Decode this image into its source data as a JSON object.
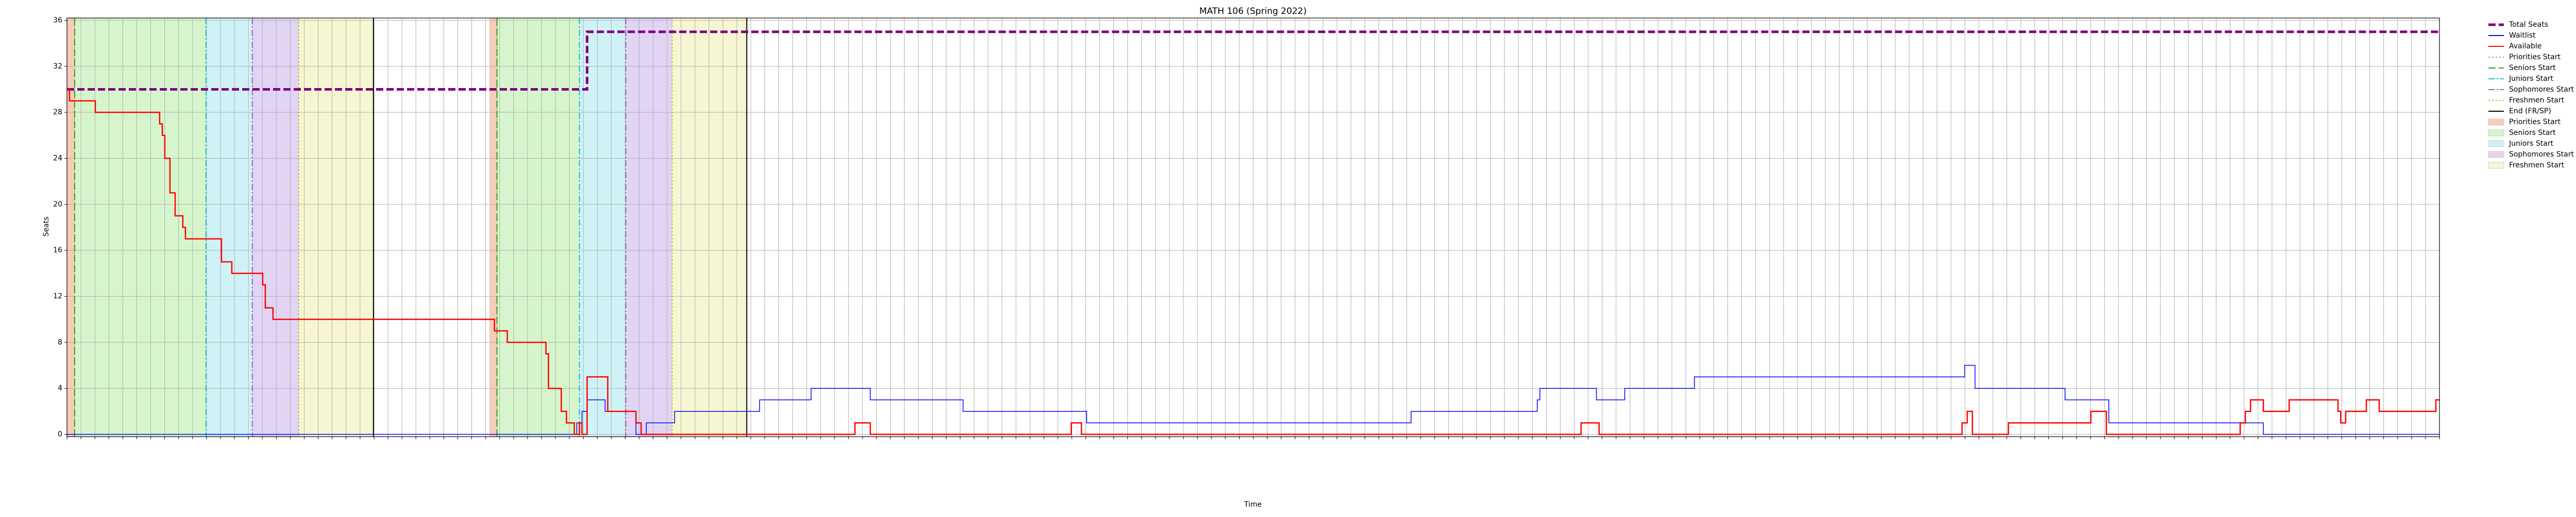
{
  "chart_data": {
    "type": "step",
    "title": "MATH 106 (Spring 2022)",
    "x_label": "Time",
    "y_label": "Seats",
    "xlim": [
      0,
      170
    ],
    "xticks": [
      0,
      1,
      2,
      3,
      4,
      5,
      6,
      7,
      8,
      9,
      10,
      11,
      12,
      13,
      14,
      15,
      16,
      17,
      18,
      19,
      20,
      21,
      22,
      23,
      24,
      25,
      26,
      27,
      28,
      29,
      30,
      31,
      32,
      33,
      34,
      35,
      36,
      37,
      38,
      39,
      40,
      41,
      42,
      43,
      44,
      45,
      46,
      47,
      48,
      49,
      50,
      51,
      52,
      53,
      54,
      55,
      56,
      57,
      58,
      59,
      60,
      61,
      62,
      63,
      64,
      65,
      66,
      67,
      68,
      69,
      70,
      71,
      72,
      73,
      74,
      75,
      76,
      77,
      78,
      79,
      80,
      81,
      82,
      83,
      84,
      85,
      86,
      87,
      88,
      89,
      90,
      91,
      92,
      93,
      94,
      95,
      96,
      97,
      98,
      99,
      100,
      101,
      102,
      103,
      104,
      105,
      106,
      107,
      108,
      109,
      110,
      111,
      112,
      113,
      114,
      115,
      116,
      117,
      118,
      119,
      120,
      121,
      122,
      123,
      124,
      125,
      126,
      127,
      128,
      129,
      130,
      131,
      132,
      133,
      134,
      135,
      136,
      137,
      138,
      139,
      140,
      141,
      142,
      143,
      144,
      145,
      146,
      147,
      148,
      149,
      150,
      151,
      152,
      153,
      154,
      155,
      156,
      157,
      158,
      159,
      160,
      161,
      162,
      163,
      164,
      165,
      166,
      167,
      168,
      169,
      170
    ],
    "ylim": [
      -0.2,
      36.2
    ],
    "yticks": [
      0,
      4,
      8,
      12,
      16,
      20,
      24,
      28,
      32,
      36
    ],
    "grid": true,
    "legend": "outside-right",
    "series": [
      {
        "name": "Total Seats",
        "color": "#800080",
        "style": "dashed",
        "x": [
          0,
          37.27,
          170
        ],
        "values": [
          30,
          35,
          35
        ]
      },
      {
        "name": "Waitlist",
        "color": "#0000ff",
        "style": "solid",
        "x": [
          0,
          36.53,
          36.9,
          37.27,
          38.56,
          40.77,
          41.51,
          43.54,
          49.63,
          53.32,
          57.56,
          64.21,
          73.06,
          96.31,
          105.35,
          105.54,
          109.59,
          111.62,
          116.61,
          135.98,
          136.72,
          143.17,
          146.31,
          157.38,
          170
        ],
        "values": [
          0,
          1,
          2,
          3,
          2,
          0,
          1,
          2,
          3,
          4,
          3,
          2,
          1,
          2,
          3,
          4,
          3,
          4,
          5,
          6,
          4,
          3,
          1,
          0,
          0
        ]
      },
      {
        "name": "Available",
        "color": "#ff0000",
        "style": "solid",
        "x": [
          0,
          0.18,
          2.03,
          6.64,
          6.83,
          7.01,
          7.38,
          7.75,
          8.3,
          8.49,
          11.07,
          11.81,
          14.02,
          14.21,
          14.76,
          30.63,
          31.55,
          34.32,
          34.5,
          35.42,
          35.79,
          36.35,
          36.72,
          36.9,
          37.27,
          38.75,
          40.77,
          41.14,
          56.46,
          57.56,
          71.96,
          72.69,
          108.49,
          109.78,
          135.79,
          136.16,
          136.53,
          139.11,
          145.02,
          146.13,
          155.72,
          156.09,
          156.46,
          157.38,
          159.23,
          162.73,
          162.92,
          163.28,
          164.76,
          165.68,
          169.74,
          170
        ],
        "values": [
          30,
          29,
          28,
          27,
          26,
          24,
          21,
          19,
          18,
          17,
          15,
          14,
          13,
          11,
          10,
          9,
          8,
          7,
          4,
          2,
          1,
          0,
          1,
          0,
          5,
          2,
          1,
          0,
          1,
          0,
          1,
          0,
          1,
          0,
          1,
          2,
          0,
          1,
          2,
          0,
          1,
          2,
          3,
          2,
          3,
          2,
          1,
          2,
          3,
          2,
          3,
          3
        ]
      }
    ],
    "start_lines": [
      {
        "name": "Priorities Start",
        "color": "#f08060",
        "style": "dotted",
        "x": [
          0.55,
          30.81
        ]
      },
      {
        "name": "Seniors Start",
        "color": "#2ca02c",
        "style": "dashed",
        "x": [
          0.55,
          30.81
        ]
      },
      {
        "name": "Juniors Start",
        "color": "#17becf",
        "style": "dashdot",
        "x": [
          9.96,
          36.72
        ]
      },
      {
        "name": "Sophomores Start",
        "color": "#9467bd",
        "style": "dashdot",
        "x": [
          13.28,
          40.04
        ]
      },
      {
        "name": "Freshmen Start",
        "color": "#bcbd22",
        "style": "dotted",
        "x": [
          16.61,
          43.36
        ]
      }
    ],
    "end_line": {
      "name": "End (FR/SP)",
      "color": "#000000",
      "x": [
        21.96,
        48.71
      ]
    },
    "spans": [
      {
        "name": "Priorities Start",
        "color": "#f6cdb8",
        "ranges": [
          [
            0,
            0.55
          ],
          [
            30.26,
            30.81
          ]
        ]
      },
      {
        "name": "Seniors Start",
        "color": "#d6f5cc",
        "ranges": [
          [
            0.55,
            9.96
          ],
          [
            30.81,
            36.72
          ]
        ]
      },
      {
        "name": "Juniors Start",
        "color": "#cff2f6",
        "ranges": [
          [
            9.96,
            13.28
          ],
          [
            36.72,
            40.04
          ]
        ]
      },
      {
        "name": "Sophomores Start",
        "color": "#e1d4f4",
        "ranges": [
          [
            13.28,
            16.61
          ],
          [
            40.04,
            43.36
          ]
        ]
      },
      {
        "name": "Freshmen Start",
        "color": "#f6f6d2",
        "ranges": [
          [
            16.61,
            21.96
          ],
          [
            43.36,
            48.71
          ]
        ]
      }
    ]
  }
}
